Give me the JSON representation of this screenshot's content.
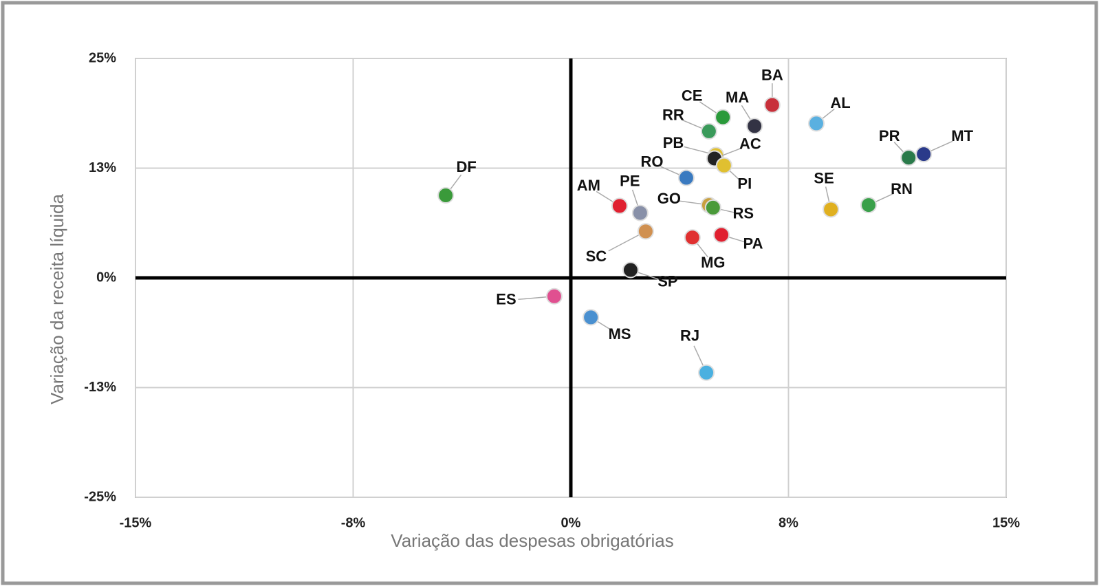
{
  "chart_data": {
    "type": "scatter",
    "x_label": "Variação das despesas obrigatórias",
    "y_label": "Variação da receita líquida",
    "xlim": [
      -15,
      15
    ],
    "xticks": [
      {
        "value": -15,
        "label": "-15%"
      },
      {
        "value": -7.5,
        "label": "-8%"
      },
      {
        "value": 0,
        "label": "0%"
      },
      {
        "value": 7.5,
        "label": "8%"
      },
      {
        "value": 15,
        "label": "15%"
      }
    ],
    "ylim": [
      -25,
      25
    ],
    "yticks": [
      {
        "value": -25,
        "label": "-25%"
      },
      {
        "value": -12.5,
        "label": "-13%"
      },
      {
        "value": 0,
        "label": "0%"
      },
      {
        "value": 12.5,
        "label": "13%"
      },
      {
        "value": 25,
        "label": "25%"
      }
    ],
    "grid": true,
    "labels": [
      "DF",
      "BA",
      "AL",
      "MA",
      "CE",
      "RR",
      "PB",
      "AC",
      "PI",
      "PR",
      "MT",
      "RO",
      "SE",
      "RN",
      "AM",
      "PE",
      "GO",
      "RS",
      "SC",
      "MG",
      "PA",
      "SP",
      "ES",
      "MS",
      "RJ"
    ],
    "x": [
      -4.31,
      6.94,
      8.46,
      6.33,
      5.24,
      4.76,
      5.0,
      4.95,
      5.28,
      11.64,
      12.16,
      3.98,
      8.96,
      10.26,
      1.68,
      2.39,
      4.76,
      4.9,
      2.58,
      4.19,
      5.19,
      2.06,
      -0.57,
      0.69,
      4.67
    ],
    "y": [
      9.4,
      19.7,
      17.6,
      17.3,
      18.3,
      16.7,
      14.0,
      13.6,
      12.8,
      13.7,
      14.1,
      11.4,
      7.8,
      8.3,
      8.2,
      7.4,
      8.3,
      8.0,
      5.3,
      4.6,
      4.9,
      0.9,
      -2.1,
      -4.5,
      -10.8
    ],
    "point_colors": [
      "#3a9a3a",
      "#c8303a",
      "#5ab0e0",
      "#333344",
      "#2a9a3a",
      "#3a9a5a",
      "#e0c030",
      "#222222",
      "#e0c030",
      "#2a7a4a",
      "#2a3a8a",
      "#3a7ac0",
      "#e0b020",
      "#3aa04a",
      "#e02030",
      "#8890a8",
      "#c8a040",
      "#4a9a3a",
      "#d09050",
      "#e03030",
      "#e02030",
      "#222222",
      "#e05090",
      "#4a90d0",
      "#4ab0e0"
    ]
  }
}
